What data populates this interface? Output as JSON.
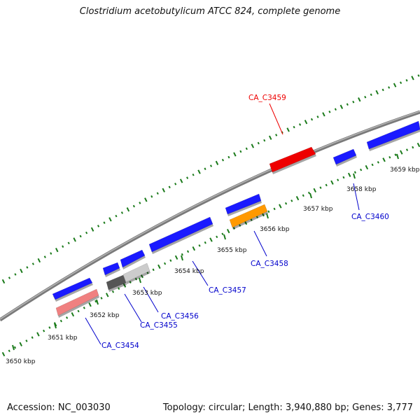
{
  "title": "Clostridium acetobutylicum ATCC 824, complete genome",
  "footer": {
    "accession": "Accession: NC_003030",
    "summary": "Topology: circular; Length: 3,940,880 bp; Genes: 3,777"
  },
  "scale_ticks": [
    "3650 kbp",
    "3651 kbp",
    "3652 kbp",
    "3653 kbp",
    "3654 kbp",
    "3655 kbp",
    "3656 kbp",
    "3657 kbp",
    "3658 kbp",
    "3659 kbp"
  ],
  "colors": {
    "forward_gene": "#1a1aff",
    "highlight_gene": "#ee0000",
    "orange_gene": "#ff9900",
    "pink_gene": "#f08080",
    "gray_gene": "#cccccc",
    "dark_gene": "#555555",
    "backbone": "#888888",
    "dots": "#1a7a1a"
  },
  "gene_labels": [
    {
      "id": "ca-c3459",
      "text": "CA_C3459",
      "color": "#ee0000"
    },
    {
      "id": "ca-c3460",
      "text": "CA_C3460",
      "color": "#0000cc"
    },
    {
      "id": "ca-c3458",
      "text": "CA_C3458",
      "color": "#0000cc"
    },
    {
      "id": "ca-c3457",
      "text": "CA_C3457",
      "color": "#0000cc"
    },
    {
      "id": "ca-c3456",
      "text": "CA_C3456",
      "color": "#0000cc"
    },
    {
      "id": "ca-c3455",
      "text": "CA_C3455",
      "color": "#0000cc"
    },
    {
      "id": "ca-c3454",
      "text": "CA_C3454",
      "color": "#0000cc"
    }
  ]
}
